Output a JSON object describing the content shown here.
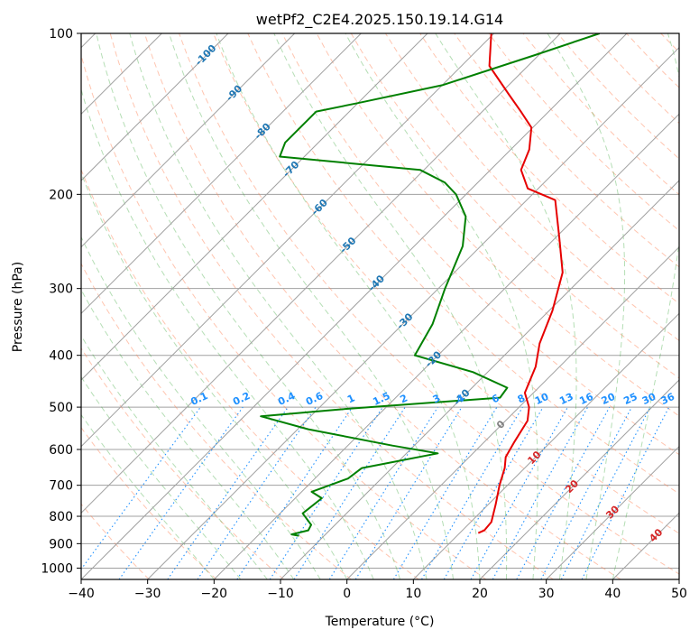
{
  "chart_data": {
    "type": "line",
    "title": "wetPf2_C2E4.2025.150.19.14.G14",
    "xlabel": "Temperature (°C)",
    "ylabel": "Pressure (hPa)",
    "xlim": [
      -40,
      50
    ],
    "ylim": [
      1050,
      100
    ],
    "y_scale": "log",
    "skew": 45,
    "grid": true,
    "x_ticks": [
      -40,
      -30,
      -20,
      -10,
      0,
      10,
      20,
      30,
      40,
      50
    ],
    "y_ticks": [
      100,
      200,
      300,
      400,
      500,
      600,
      700,
      800,
      900,
      1000
    ],
    "series": [
      {
        "role": "temperature",
        "color": "#e60000",
        "points": [
          {
            "t": 12.8,
            "p": 860
          },
          {
            "t": 13.3,
            "p": 850
          },
          {
            "t": 13.1,
            "p": 820
          },
          {
            "t": 11.1,
            "p": 760
          },
          {
            "t": 8.8,
            "p": 700
          },
          {
            "t": 7.0,
            "p": 650
          },
          {
            "t": 5.5,
            "p": 620
          },
          {
            "t": 4.5,
            "p": 580
          },
          {
            "t": 3.3,
            "p": 530
          },
          {
            "t": 1.5,
            "p": 500
          },
          {
            "t": -1.3,
            "p": 470
          },
          {
            "t": -3.6,
            "p": 420
          },
          {
            "t": -6.5,
            "p": 380
          },
          {
            "t": -9.5,
            "p": 330
          },
          {
            "t": -13.7,
            "p": 280
          },
          {
            "t": -19.6,
            "p": 240
          },
          {
            "t": -25.7,
            "p": 205
          },
          {
            "t": -31.6,
            "p": 195
          },
          {
            "t": -35.4,
            "p": 180
          },
          {
            "t": -37.2,
            "p": 165
          },
          {
            "t": -40.2,
            "p": 150
          },
          {
            "t": -44.2,
            "p": 140
          },
          {
            "t": -48.6,
            "p": 130
          },
          {
            "t": -55.8,
            "p": 115
          },
          {
            "t": -60.4,
            "p": 100
          }
        ]
      },
      {
        "role": "dewpoint",
        "color": "#008000",
        "points": [
          {
            "t": -13.8,
            "p": 870
          },
          {
            "t": -15.1,
            "p": 865
          },
          {
            "t": -13.2,
            "p": 850
          },
          {
            "t": -13.6,
            "p": 830
          },
          {
            "t": -16.6,
            "p": 790
          },
          {
            "t": -16.0,
            "p": 740
          },
          {
            "t": -18.5,
            "p": 720
          },
          {
            "t": -15.0,
            "p": 680
          },
          {
            "t": -14.5,
            "p": 650
          },
          {
            "t": -5.3,
            "p": 610
          },
          {
            "t": -13.3,
            "p": 590
          },
          {
            "t": -28.4,
            "p": 550
          },
          {
            "t": -37.5,
            "p": 520
          },
          {
            "t": -26.8,
            "p": 505
          },
          {
            "t": -4.3,
            "p": 480
          },
          {
            "t": -4.7,
            "p": 460
          },
          {
            "t": -12.2,
            "p": 430
          },
          {
            "t": -23.5,
            "p": 400
          },
          {
            "t": -25.5,
            "p": 350
          },
          {
            "t": -29.0,
            "p": 300
          },
          {
            "t": -32.7,
            "p": 250
          },
          {
            "t": -36.7,
            "p": 220
          },
          {
            "t": -41.5,
            "p": 200
          },
          {
            "t": -45.0,
            "p": 190
          },
          {
            "t": -50.6,
            "p": 180
          },
          {
            "t": -73.7,
            "p": 170
          },
          {
            "t": -75.0,
            "p": 160
          },
          {
            "t": -75.0,
            "p": 140
          },
          {
            "t": -70.0,
            "p": 135
          },
          {
            "t": -60.0,
            "p": 125
          },
          {
            "t": -50.7,
            "p": 110
          },
          {
            "t": -44.1,
            "p": 100
          }
        ]
      }
    ],
    "isotherm_labels": [
      "-100",
      "-90",
      "-80",
      "-70",
      "-60",
      "-50",
      "-40",
      "-30",
      "-20",
      "-10",
      "0",
      "10",
      "20",
      "30",
      "40"
    ],
    "mixing_ratio_labels": [
      "0.1",
      "0.2",
      "0.4",
      "0.6",
      "1",
      "1.5",
      "2",
      "3",
      "4",
      "6",
      "8",
      "10",
      "13",
      "16",
      "20",
      "25",
      "30",
      "36"
    ],
    "colors": {
      "isotherm_cold": "#1f77b4",
      "isotherm_zero": "#808080",
      "isotherm_warm": "#d62728",
      "mixing_ratio": "#1e90ff",
      "dry_adiabat": "#ff7f50",
      "moist_adiabat": "#2ca02c",
      "grid": "#a0a0a0"
    }
  }
}
